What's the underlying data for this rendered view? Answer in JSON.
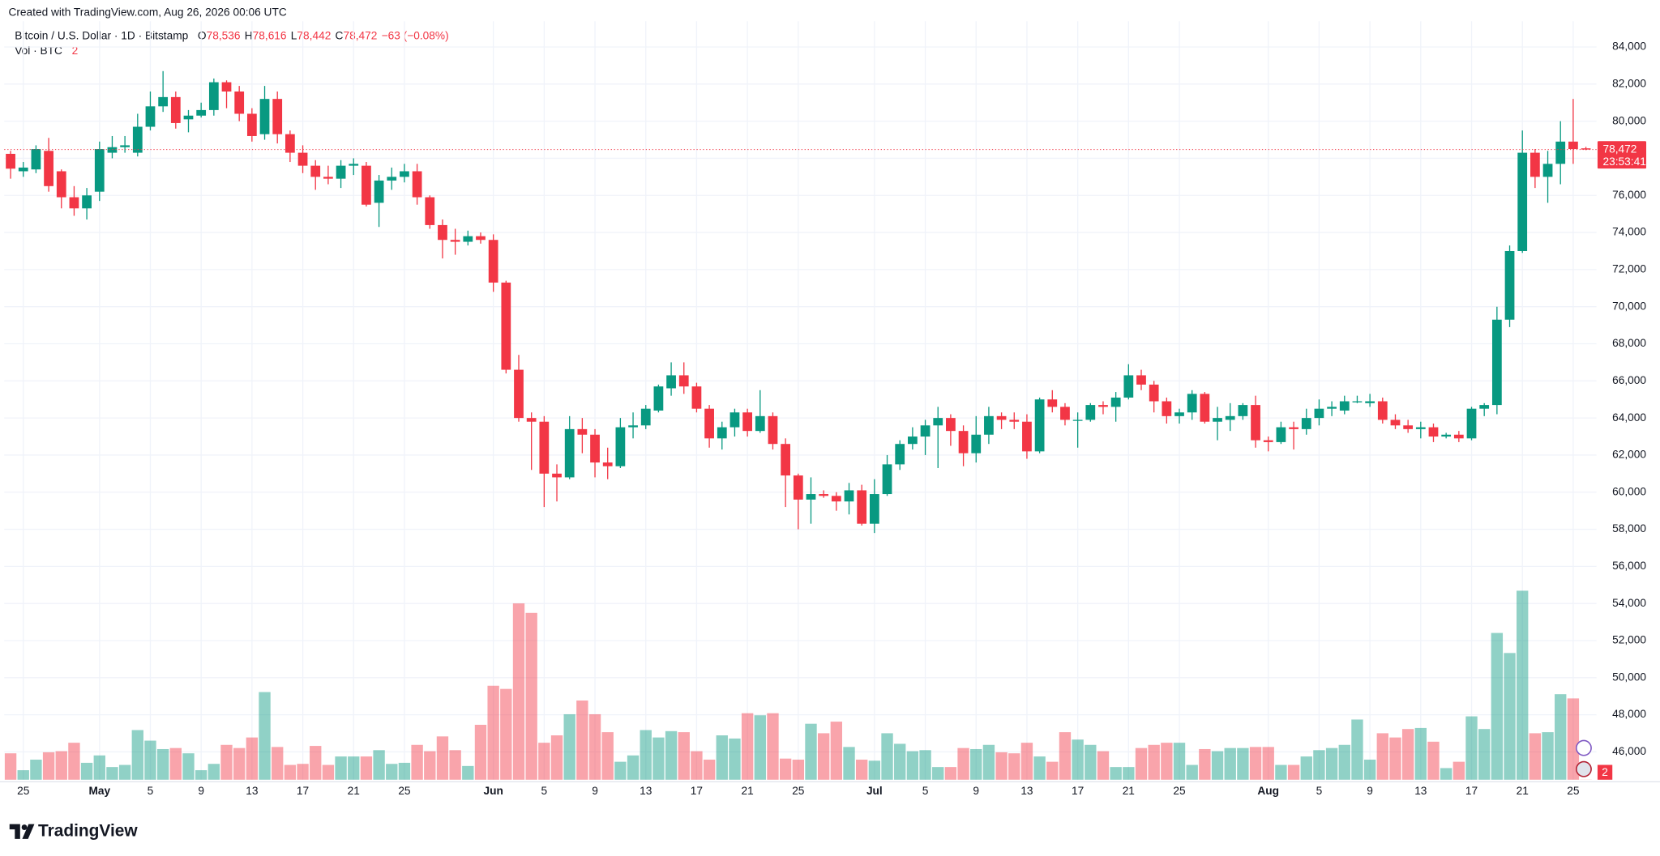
{
  "chart_data": {
    "type": "candlestick",
    "header": "Created with TradingView.com, Aug 26, 2026 00:06 UTC",
    "title": "Bitcoin / U.S. Dollar · 1D · Bitstamp",
    "ohlc_labels": [
      {
        "name": "O",
        "value": "78,536"
      },
      {
        "name": "H",
        "value": "78,616"
      },
      {
        "name": "L",
        "value": "78,442"
      },
      {
        "name": "C",
        "value": "78,472"
      }
    ],
    "change": "−63 (−0.08%)",
    "volume_title": "Vol · BTC",
    "last_price_label": "78,472",
    "countdown": "23:53:41",
    "brand": "TradingView",
    "up_color": "#089981",
    "down_color": "#f23645",
    "ylim": [
      44500,
      85100
    ],
    "vlim": [
      0,
      10700
    ],
    "grid": true,
    "yticks": [
      {
        "value": 46000,
        "label": "46,000"
      },
      {
        "value": 48000,
        "label": "48,000"
      },
      {
        "value": 50000,
        "label": "50,000"
      },
      {
        "value": 52000,
        "label": "52,000"
      },
      {
        "value": 54000,
        "label": "54,000"
      },
      {
        "value": 56000,
        "label": "56,000"
      },
      {
        "value": 58000,
        "label": "58,000"
      },
      {
        "value": 60000,
        "label": "60,000"
      },
      {
        "value": 62000,
        "label": "62,000"
      },
      {
        "value": 64000,
        "label": "64,000"
      },
      {
        "value": 66000,
        "label": "66,000"
      },
      {
        "value": 68000,
        "label": "68,000"
      },
      {
        "value": 70000,
        "label": "70,000"
      },
      {
        "value": 72000,
        "label": "72,000"
      },
      {
        "value": 74000,
        "label": "74,000"
      },
      {
        "value": 76000,
        "label": "76,000"
      },
      {
        "value": 78000,
        "label": "78,000"
      },
      {
        "value": 80000,
        "label": "80,000"
      },
      {
        "value": 82000,
        "label": "82,000"
      },
      {
        "value": 84000,
        "label": "84,000"
      }
    ],
    "categories": [
      null,
      "25",
      null,
      null,
      null,
      null,
      null,
      "May",
      null,
      null,
      null,
      "5",
      null,
      null,
      null,
      "9",
      null,
      null,
      null,
      "13",
      null,
      null,
      null,
      "17",
      null,
      null,
      null,
      "21",
      null,
      null,
      null,
      "25",
      null,
      null,
      null,
      null,
      null,
      null,
      "Jun",
      null,
      null,
      null,
      "5",
      null,
      null,
      null,
      "9",
      null,
      null,
      null,
      "13",
      null,
      null,
      null,
      "17",
      null,
      null,
      null,
      "21",
      null,
      null,
      null,
      "25",
      null,
      null,
      null,
      null,
      null,
      "Jul",
      null,
      null,
      null,
      "5",
      null,
      null,
      null,
      "9",
      null,
      null,
      null,
      "13",
      null,
      null,
      null,
      "17",
      null,
      null,
      null,
      "21",
      null,
      null,
      null,
      "25",
      null,
      null,
      null,
      null,
      null,
      null,
      "Aug",
      null,
      null,
      null,
      "5",
      null,
      null,
      null,
      "9",
      null,
      null,
      null,
      "13",
      null,
      null,
      null,
      "17",
      null,
      null,
      null,
      "21",
      null,
      null,
      null,
      "25",
      null
    ],
    "open": [
      78240,
      77300,
      77400,
      78400,
      77300,
      75900,
      75300,
      76200,
      78300,
      78600,
      78300,
      79700,
      80800,
      81300,
      80100,
      80300,
      80600,
      82100,
      81600,
      80400,
      79300,
      81200,
      79300,
      78300,
      77600,
      77000,
      76900,
      77600,
      77600,
      75600,
      76800,
      77000,
      77300,
      75900,
      74400,
      73600,
      73500,
      73800,
      73600,
      71300,
      66600,
      64000,
      63800,
      61000,
      60800,
      63400,
      63100,
      61600,
      61400,
      63500,
      63600,
      64400,
      65600,
      66300,
      65700,
      64500,
      62900,
      63500,
      64300,
      63300,
      64100,
      62600,
      60900,
      59600,
      59900,
      59800,
      59500,
      60100,
      58300,
      59900,
      61500,
      62600,
      63000,
      63600,
      64000,
      63300,
      62100,
      63100,
      64100,
      63900,
      63800,
      62200,
      65000,
      64600,
      63900,
      63900,
      64700,
      64600,
      65100,
      66300,
      65800,
      64900,
      64100,
      64300,
      65300,
      63800,
      63900,
      64100,
      64700,
      62800,
      62700,
      63500,
      63400,
      64000,
      64500,
      64400,
      64900,
      64800,
      64900,
      63900,
      63600,
      63400,
      63500,
      63000,
      63100,
      62900,
      64500,
      64700,
      69300,
      73000,
      78300,
      77000,
      77700,
      78900,
      78536
    ],
    "high": [
      78400,
      77800,
      78700,
      79100,
      77400,
      76500,
      76400,
      78900,
      79200,
      79200,
      80400,
      81600,
      82700,
      81600,
      80600,
      81000,
      82300,
      82200,
      81900,
      80700,
      81900,
      81600,
      79500,
      78700,
      77900,
      77600,
      77900,
      78000,
      77800,
      77100,
      77500,
      77700,
      77700,
      76000,
      74700,
      74200,
      74100,
      74000,
      73900,
      71400,
      67400,
      64300,
      64100,
      61500,
      64100,
      64000,
      63400,
      62400,
      64000,
      64300,
      64700,
      65800,
      67000,
      67000,
      65900,
      64700,
      63800,
      64500,
      64500,
      65500,
      64300,
      62900,
      61000,
      60800,
      60100,
      60000,
      60500,
      60400,
      60700,
      62000,
      62800,
      63500,
      63900,
      64600,
      64200,
      63600,
      64100,
      64600,
      64300,
      64300,
      64200,
      65100,
      65500,
      64800,
      64300,
      64800,
      64900,
      65400,
      66900,
      66600,
      66000,
      65100,
      64500,
      65500,
      65400,
      64600,
      64800,
      64800,
      65200,
      63000,
      63800,
      63800,
      64500,
      65000,
      64900,
      65200,
      65200,
      65300,
      65100,
      64200,
      63900,
      63800,
      63700,
      63200,
      63300,
      64600,
      64800,
      70000,
      73300,
      79500,
      78500,
      78400,
      80000,
      81200,
      78616
    ],
    "low": [
      76900,
      77000,
      77200,
      76200,
      75300,
      74900,
      74700,
      75700,
      78000,
      78300,
      78100,
      79500,
      80500,
      79600,
      79400,
      80200,
      80300,
      80700,
      80000,
      78900,
      79000,
      78800,
      77800,
      77200,
      76300,
      76600,
      76400,
      77100,
      75400,
      74300,
      76300,
      76700,
      75500,
      74200,
      72600,
      72800,
      73300,
      73400,
      70800,
      66400,
      63800,
      61200,
      59200,
      59500,
      60700,
      62100,
      60800,
      60700,
      61300,
      62900,
      63400,
      64300,
      65200,
      65300,
      64300,
      62400,
      62300,
      63000,
      63000,
      63200,
      62300,
      59200,
      58000,
      58300,
      59700,
      59000,
      58800,
      58200,
      57800,
      59800,
      61200,
      62300,
      62000,
      61300,
      62500,
      61400,
      61600,
      62600,
      63400,
      63400,
      61800,
      62100,
      64300,
      63600,
      62400,
      63800,
      64200,
      63800,
      65000,
      65500,
      64300,
      63700,
      63700,
      63900,
      63700,
      62800,
      63300,
      63900,
      62400,
      62200,
      62600,
      62300,
      63100,
      63600,
      64100,
      64200,
      64800,
      64600,
      63700,
      63400,
      63200,
      62900,
      62700,
      62900,
      62700,
      62800,
      64100,
      64200,
      68900,
      72900,
      76400,
      75600,
      76600,
      77700,
      78442
    ],
    "close": [
      77440,
      77500,
      78500,
      76500,
      75900,
      75300,
      76000,
      78500,
      78600,
      78700,
      79700,
      80800,
      81300,
      79900,
      80300,
      80600,
      82100,
      81600,
      80400,
      79200,
      81200,
      79300,
      78300,
      77600,
      77000,
      76900,
      77600,
      77700,
      75500,
      76800,
      77000,
      77300,
      75900,
      74400,
      73600,
      73500,
      73800,
      73600,
      71300,
      66600,
      64000,
      63800,
      61000,
      60800,
      63400,
      63100,
      61600,
      61400,
      63500,
      63600,
      64500,
      65700,
      66300,
      65700,
      64500,
      62900,
      63500,
      64300,
      63300,
      64100,
      62600,
      60900,
      59600,
      59900,
      59800,
      59500,
      60100,
      58300,
      59900,
      61500,
      62600,
      63000,
      63600,
      64000,
      63300,
      62100,
      63100,
      64100,
      63900,
      63800,
      62200,
      65000,
      64600,
      63900,
      63900,
      64700,
      64600,
      65100,
      66300,
      65800,
      64900,
      64100,
      64300,
      65300,
      63800,
      64000,
      64100,
      64700,
      62800,
      62700,
      63500,
      63400,
      64000,
      64500,
      64600,
      64900,
      64900,
      64900,
      63900,
      63600,
      63400,
      63500,
      63000,
      63100,
      62900,
      64500,
      64700,
      69300,
      73000,
      78300,
      77000,
      77700,
      78900,
      78500,
      78472
    ],
    "volume": [
      375,
      135,
      285,
      390,
      405,
      525,
      240,
      345,
      180,
      210,
      705,
      555,
      435,
      450,
      375,
      135,
      225,
      495,
      450,
      600,
      1245,
      465,
      210,
      225,
      480,
      210,
      330,
      330,
      330,
      420,
      225,
      240,
      495,
      405,
      615,
      420,
      195,
      780,
      1335,
      1290,
      2505,
      2370,
      525,
      630,
      930,
      1125,
      930,
      675,
      255,
      345,
      705,
      600,
      690,
      675,
      405,
      285,
      630,
      585,
      945,
      915,
      945,
      300,
      285,
      795,
      660,
      825,
      465,
      285,
      270,
      660,
      510,
      405,
      420,
      180,
      180,
      450,
      435,
      495,
      390,
      375,
      525,
      330,
      255,
      675,
      570,
      495,
      405,
      180,
      180,
      450,
      495,
      525,
      525,
      210,
      435,
      405,
      450,
      450,
      465,
      465,
      210,
      210,
      330,
      420,
      450,
      495,
      855,
      285,
      660,
      600,
      720,
      735,
      540,
      165,
      255,
      900,
      720,
      2085,
      1800,
      2685,
      660,
      675,
      1215,
      1155,
      2
    ]
  }
}
